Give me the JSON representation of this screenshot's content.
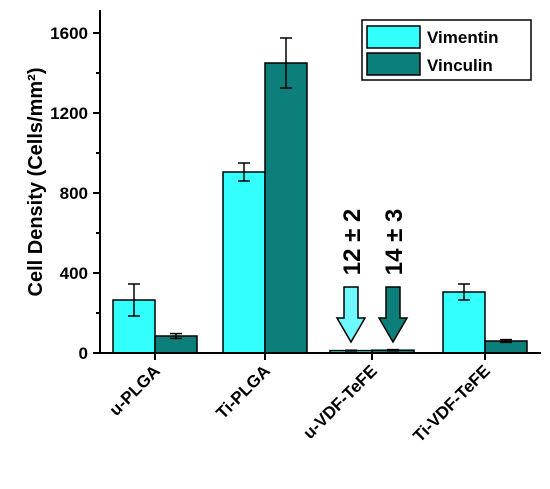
{
  "chart_data": {
    "type": "bar",
    "title": "",
    "xlabel": "",
    "ylabel": "Cell Density (Cells/mm²)",
    "ylim": [
      0,
      1750
    ],
    "yticks": [
      "0",
      "400",
      "800",
      "1200",
      "1600"
    ],
    "ytick_values": [
      0,
      400,
      800,
      1200,
      1600
    ],
    "categories": [
      "u-PLGA",
      "Ti-PLGA",
      "u-VDF-TeFE",
      "Ti-VDF-TeFE"
    ],
    "series": [
      {
        "name": "Vimentin",
        "color": "#33ffff",
        "values": [
          265,
          905,
          12,
          305
        ],
        "errors": [
          80,
          45,
          2,
          40
        ]
      },
      {
        "name": "Vinculin",
        "color": "#0d7f7a",
        "values": [
          85,
          1450,
          14,
          60
        ],
        "errors": [
          12,
          125,
          3,
          7
        ]
      }
    ],
    "legend": {
      "placement": "top-right"
    },
    "grid": false,
    "annotations": [
      {
        "text": "12 ± 2",
        "category": "u-VDF-TeFE",
        "series": "Vimentin",
        "arrow_color": "#6ff8ff"
      },
      {
        "text": "14 ± 3",
        "category": "u-VDF-TeFE",
        "series": "Vinculin",
        "arrow_color": "#0d7f7a"
      }
    ]
  }
}
